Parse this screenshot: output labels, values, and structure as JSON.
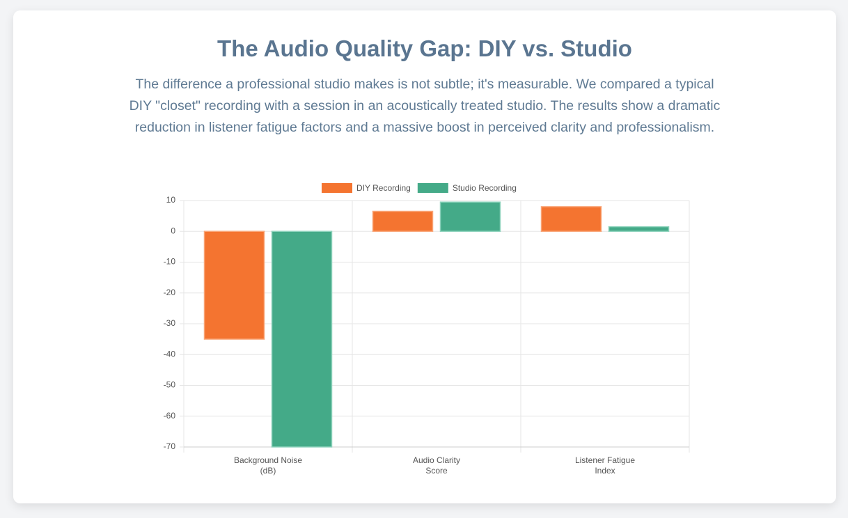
{
  "chart_data": {
    "type": "bar",
    "title": "The Audio Quality Gap: DIY vs. Studio",
    "subtitle": "The difference a professional studio makes is not subtle; it's measurable. We compared a typical DIY \"closet\" recording with a session in an acoustically treated studio. The results show a dramatic reduction in listener fatigue factors and a massive boost in perceived clarity and professionalism.",
    "categories": [
      [
        "Background Noise",
        "(dB)"
      ],
      [
        "Audio Clarity",
        "Score"
      ],
      [
        "Listener Fatigue",
        "Index"
      ]
    ],
    "series": [
      {
        "name": "DIY Recording",
        "color": "#f47430",
        "values": [
          -35,
          6.5,
          8
        ]
      },
      {
        "name": "Studio Recording",
        "color": "#44aa88",
        "values": [
          -70,
          9.5,
          1.5
        ]
      }
    ],
    "ylim": [
      -70,
      10
    ],
    "yticks": [
      10,
      0,
      -10,
      -20,
      -30,
      -40,
      -50,
      -60,
      -70
    ],
    "grid": true,
    "legend": "top"
  }
}
